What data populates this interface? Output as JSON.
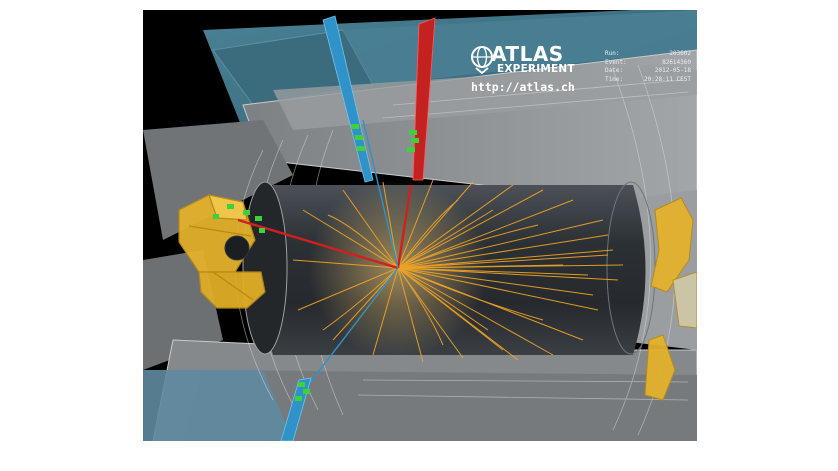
{
  "logo": {
    "title": "ATLAS",
    "subtitle": "EXPERIMENT",
    "url": "http://atlas.ch"
  },
  "event_info": [
    {
      "label": "Run:",
      "value": "203602"
    },
    {
      "label": "Event:",
      "value": "82614360"
    },
    {
      "label": "Date:",
      "value": "2012-05-18"
    },
    {
      "label": "Time:",
      "value": "20:28:11 CEST"
    }
  ],
  "colors": {
    "background": "#000000",
    "detector_outer": "#3f6f82",
    "detector_shell": "#8a8d90",
    "barrel_core": "#2d3236",
    "endcap_yellow": "#e3b12c",
    "tracks_orange": "#f5a623",
    "electron_red": "#d11f1f",
    "muon_blue": "#2f93c9",
    "hits_green": "#3fd13a"
  }
}
